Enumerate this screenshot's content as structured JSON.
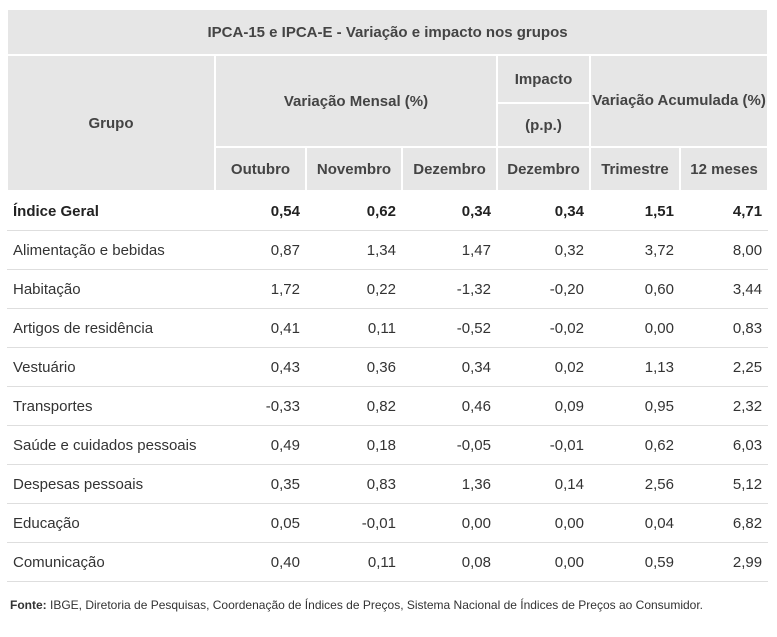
{
  "title": "IPCA-15 e IPCA-E - Variação e impacto nos grupos",
  "headers": {
    "grupo": "Grupo",
    "variacao_mensal": "Variação Mensal (%)",
    "impacto": "Impacto",
    "impacto_unit": "(p.p.)",
    "variacao_acumulada": "Variação Acumulada (%)",
    "cols": [
      "Outubro",
      "Novembro",
      "Dezembro",
      "Dezembro",
      "Trimestre",
      "12 meses"
    ]
  },
  "rows": [
    {
      "grupo": "Índice Geral",
      "values": [
        "0,54",
        "0,62",
        "0,34",
        "0,34",
        "1,51",
        "4,71"
      ]
    },
    {
      "grupo": "Alimentação e bebidas",
      "values": [
        "0,87",
        "1,34",
        "1,47",
        "0,32",
        "3,72",
        "8,00"
      ]
    },
    {
      "grupo": "Habitação",
      "values": [
        "1,72",
        "0,22",
        "-1,32",
        "-0,20",
        "0,60",
        "3,44"
      ]
    },
    {
      "grupo": "Artigos de residência",
      "values": [
        "0,41",
        "0,11",
        "-0,52",
        "-0,02",
        "0,00",
        "0,83"
      ]
    },
    {
      "grupo": "Vestuário",
      "values": [
        "0,43",
        "0,36",
        "0,34",
        "0,02",
        "1,13",
        "2,25"
      ]
    },
    {
      "grupo": "Transportes",
      "values": [
        "-0,33",
        "0,82",
        "0,46",
        "0,09",
        "0,95",
        "2,32"
      ]
    },
    {
      "grupo": "Saúde e cuidados pessoais",
      "values": [
        "0,49",
        "0,18",
        "-0,05",
        "-0,01",
        "0,62",
        "6,03"
      ]
    },
    {
      "grupo": "Despesas pessoais",
      "values": [
        "0,35",
        "0,83",
        "1,36",
        "0,14",
        "2,56",
        "5,12"
      ]
    },
    {
      "grupo": "Educação",
      "values": [
        "0,05",
        "-0,01",
        "0,00",
        "0,00",
        "0,04",
        "6,82"
      ]
    },
    {
      "grupo": "Comunicação",
      "values": [
        "0,40",
        "0,11",
        "0,08",
        "0,00",
        "0,59",
        "2,99"
      ]
    }
  ],
  "footer": {
    "label": "Fonte:",
    "text": "IBGE, Diretoria de Pesquisas, Coordenação de Índices de Preços, Sistema  Nacional de Índices de Preços ao Consumidor."
  }
}
